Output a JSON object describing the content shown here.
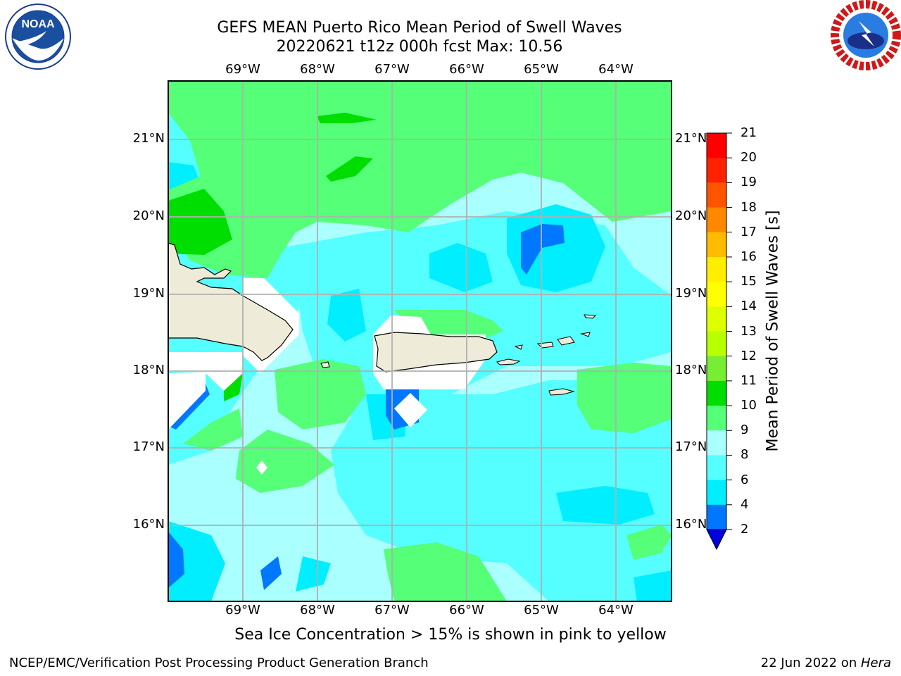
{
  "header": {
    "title_line1": "GEFS MEAN Puerto Rico Mean Period of Swell Waves",
    "title_line2": "20220621 t12z 000h fcst   Max: 10.56"
  },
  "logos": {
    "left": {
      "name": "NOAA",
      "text": "NOAA",
      "ring_text": "NATIONAL OCEANIC AND ATMOSPHERIC ADMINISTRATION · U.S. DEPARTMENT OF COMMERCE"
    },
    "right": {
      "name": "National Weather Service",
      "ring_text": "NATIONAL WEATHER SERVICE"
    }
  },
  "map": {
    "lon_labels": [
      "69°W",
      "68°W",
      "67°W",
      "66°W",
      "65°W",
      "64°W"
    ],
    "lat_labels": [
      "21°N",
      "20°N",
      "19°N",
      "18°N",
      "17°N",
      "16°N"
    ],
    "grid": true
  },
  "colorbar": {
    "title": "Mean Period of Swell Waves [s]",
    "ticks": [
      "21",
      "20",
      "19",
      "18",
      "17",
      "16",
      "15",
      "14",
      "13",
      "12",
      "11",
      "10",
      "9",
      "8",
      "6",
      "4",
      "2"
    ],
    "colors": [
      "#ff0000",
      "#ff2200",
      "#ff5500",
      "#ff8800",
      "#ffbb00",
      "#ffee00",
      "#ffff00",
      "#ddff00",
      "#b8ff00",
      "#77ee33",
      "#00dd00",
      "#55ff77",
      "#aaffff",
      "#55ffff",
      "#00eeff",
      "#0077ff",
      "#0000dd"
    ]
  },
  "palette": {
    "land": "#eeebd9",
    "c_0_2": "#0000dd",
    "c_2_4": "#0077ff",
    "c_4_6": "#00eeff",
    "c_6_8": "#55ffff",
    "c_8_9": "#aaffff",
    "c_9_10": "#55ff77",
    "c_10_11": "#00dd00"
  },
  "footer": {
    "note": "Sea Ice Concentration > 15% is shown in pink to yellow",
    "left": "NCEP/EMC/Verification Post Processing Product Generation Branch",
    "right_date": "22 Jun 2022 on ",
    "right_host": "Hera"
  }
}
